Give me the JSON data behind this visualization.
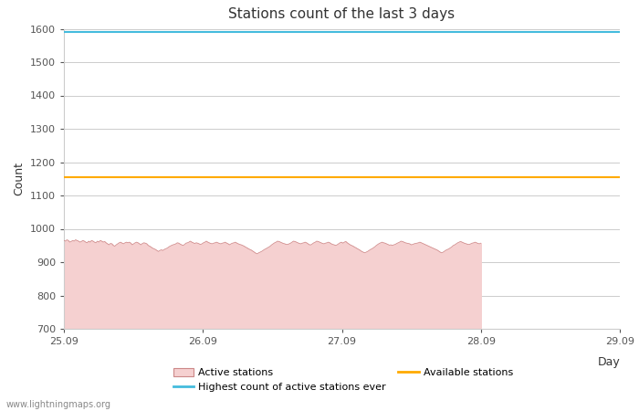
{
  "title": "Stations count of the last 3 days",
  "xlabel": "Day",
  "ylabel": "Count",
  "ylim": [
    700,
    1600
  ],
  "xlim": [
    0,
    96
  ],
  "yticks": [
    700,
    800,
    900,
    1000,
    1100,
    1200,
    1300,
    1400,
    1500,
    1600
  ],
  "xtick_positions": [
    0,
    24,
    48,
    72,
    96
  ],
  "xtick_labels": [
    "25.09",
    "26.09",
    "27.09",
    "28.09",
    "29.09"
  ],
  "highest_ever_value": 1590,
  "available_stations_value": 1155,
  "highest_ever_color": "#44bbdd",
  "available_stations_color": "#ffaa00",
  "active_stations_line_color": "#cc8888",
  "active_stations_fill_color": "#f5d0d0",
  "background_color": "#ffffff",
  "plot_bg_color": "#ffffff",
  "grid_color": "#cccccc",
  "watermark": "www.lightningmaps.org",
  "legend_labels": [
    "Active stations",
    "Highest count of active stations ever",
    "Available stations"
  ],
  "active_stations_end_x": 72,
  "active_stations_data": [
    965,
    963,
    967,
    965,
    960,
    962,
    965,
    963,
    967,
    965,
    963,
    960,
    962,
    965,
    963,
    960,
    958,
    963,
    960,
    965,
    963,
    960,
    958,
    963,
    960,
    965,
    963,
    960,
    962,
    958,
    955,
    952,
    956,
    955,
    950,
    948,
    952,
    955,
    958,
    960,
    957,
    955,
    958,
    960,
    958,
    960,
    957,
    952,
    955,
    958,
    960,
    958,
    955,
    952,
    956,
    958,
    957,
    955,
    950,
    948,
    945,
    942,
    940,
    938,
    935,
    932,
    935,
    937,
    935,
    938,
    940,
    942,
    945,
    948,
    950,
    952,
    953,
    955,
    958,
    957,
    954,
    952,
    950,
    953,
    957,
    958,
    960,
    963,
    960,
    958,
    956,
    958,
    957,
    955,
    953,
    955,
    958,
    960,
    963,
    960,
    958,
    956,
    955,
    957,
    958,
    960,
    958,
    956,
    955,
    957,
    958,
    960,
    957,
    955,
    952,
    955,
    957,
    958,
    960,
    957,
    955,
    953,
    952,
    950,
    948,
    945,
    943,
    940,
    938,
    936,
    933,
    930,
    927,
    925,
    928,
    930,
    932,
    935,
    938,
    940,
    943,
    945,
    948,
    952,
    955,
    958,
    960,
    963,
    962,
    960,
    958,
    956,
    955,
    953,
    953,
    955,
    957,
    960,
    963,
    962,
    960,
    958,
    956,
    955,
    957,
    958,
    960,
    958,
    955,
    952,
    952,
    955,
    958,
    960,
    963,
    962,
    960,
    958,
    956,
    955,
    957,
    958,
    960,
    958,
    955,
    953,
    952,
    950,
    952,
    955,
    958,
    960,
    957,
    960,
    962,
    958,
    955,
    952,
    950,
    948,
    945,
    943,
    940,
    938,
    935,
    932,
    930,
    928,
    930,
    932,
    935,
    938,
    940,
    943,
    946,
    950,
    953,
    956,
    958,
    960,
    958,
    957,
    955,
    953,
    951,
    952,
    950,
    952,
    953,
    956,
    958,
    960,
    963,
    962,
    960,
    958,
    957,
    956,
    955,
    952,
    953,
    955,
    956,
    957,
    958,
    960,
    958,
    956,
    954,
    952,
    950,
    948,
    946,
    944,
    942,
    940,
    938,
    936,
    933,
    930,
    928,
    930,
    933,
    936,
    938,
    940,
    943,
    946,
    950,
    952,
    955,
    958,
    960,
    962,
    960,
    958,
    956,
    955,
    953,
    953,
    955,
    957,
    958,
    960,
    958,
    956,
    955,
    957
  ]
}
